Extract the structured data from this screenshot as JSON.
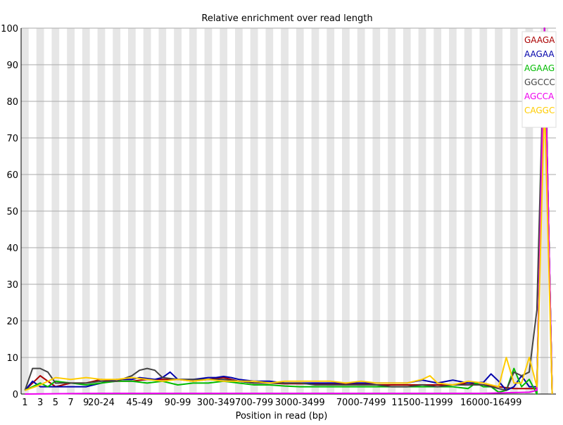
{
  "chart_data": {
    "type": "line",
    "title": "Relative enrichment over read length",
    "xlabel": "Position in read (bp)",
    "ylabel": "",
    "ylim": [
      0,
      100
    ],
    "yticks": [
      0,
      10,
      20,
      30,
      40,
      50,
      60,
      70,
      80,
      90,
      100
    ],
    "grid": "horizontal",
    "legend_position": "top-right",
    "n_positions": 70,
    "x_tick_labels": [
      {
        "i": 0,
        "label": "1"
      },
      {
        "i": 2,
        "label": "3"
      },
      {
        "i": 4,
        "label": "5"
      },
      {
        "i": 6,
        "label": "7"
      },
      {
        "i": 8,
        "label": "9"
      },
      {
        "i": 10,
        "label": "20-24"
      },
      {
        "i": 15,
        "label": "45-49"
      },
      {
        "i": 20,
        "label": "90-99"
      },
      {
        "i": 25,
        "label": "300-349"
      },
      {
        "i": 30,
        "label": "700-799"
      },
      {
        "i": 36,
        "label": "3000-3499"
      },
      {
        "i": 44,
        "label": "7000-7499"
      },
      {
        "i": 52,
        "label": "11500-11999"
      },
      {
        "i": 61,
        "label": "16000-16499"
      }
    ],
    "series": [
      {
        "name": "GAAGA",
        "color": "#aa0000",
        "points": [
          [
            0,
            1
          ],
          [
            2,
            5
          ],
          [
            4,
            2
          ],
          [
            6,
            3
          ],
          [
            8,
            3
          ],
          [
            10,
            4
          ],
          [
            12,
            3.5
          ],
          [
            14,
            3.5
          ],
          [
            16,
            4
          ],
          [
            18,
            4
          ],
          [
            20,
            4
          ],
          [
            22,
            3.5
          ],
          [
            24,
            4
          ],
          [
            26,
            4.5
          ],
          [
            28,
            3.5
          ],
          [
            30,
            3
          ],
          [
            32,
            3
          ],
          [
            34,
            2.8
          ],
          [
            36,
            2.8
          ],
          [
            38,
            2.8
          ],
          [
            40,
            2.8
          ],
          [
            42,
            2.8
          ],
          [
            44,
            2.8
          ],
          [
            46,
            2.5
          ],
          [
            48,
            2.5
          ],
          [
            50,
            2.5
          ],
          [
            52,
            2.5
          ],
          [
            54,
            2.5
          ],
          [
            56,
            2.5
          ],
          [
            58,
            3
          ],
          [
            60,
            2.5
          ],
          [
            62,
            2
          ],
          [
            64,
            1.5
          ],
          [
            66,
            1.5
          ],
          [
            67,
            1.5
          ],
          [
            68,
            100
          ],
          [
            69,
            0
          ]
        ]
      },
      {
        "name": "AAGAA",
        "color": "#0000aa",
        "points": [
          [
            0,
            1
          ],
          [
            1,
            3.5
          ],
          [
            2,
            2
          ],
          [
            4,
            2
          ],
          [
            6,
            2
          ],
          [
            8,
            2
          ],
          [
            10,
            3
          ],
          [
            12,
            4
          ],
          [
            14,
            4
          ],
          [
            15,
            4.5
          ],
          [
            17,
            4
          ],
          [
            18,
            4.5
          ],
          [
            19,
            6
          ],
          [
            20,
            4
          ],
          [
            22,
            4
          ],
          [
            24,
            4.5
          ],
          [
            25,
            4.5
          ],
          [
            26,
            4.8
          ],
          [
            27,
            4.5
          ],
          [
            28,
            4
          ],
          [
            30,
            3.5
          ],
          [
            32,
            3.5
          ],
          [
            34,
            3
          ],
          [
            36,
            3
          ],
          [
            38,
            3
          ],
          [
            40,
            3
          ],
          [
            42,
            3
          ],
          [
            44,
            3
          ],
          [
            46,
            3
          ],
          [
            48,
            3
          ],
          [
            50,
            3
          ],
          [
            52,
            3.8
          ],
          [
            54,
            3
          ],
          [
            56,
            3.8
          ],
          [
            58,
            3
          ],
          [
            60,
            3.2
          ],
          [
            61,
            5.5
          ],
          [
            62,
            3.5
          ],
          [
            63,
            1
          ],
          [
            64,
            2
          ],
          [
            65,
            5
          ],
          [
            66,
            2
          ],
          [
            67,
            2
          ],
          [
            68,
            100
          ],
          [
            69,
            0
          ]
        ]
      },
      {
        "name": "AGAAG",
        "color": "#00bb00",
        "points": [
          [
            0,
            1
          ],
          [
            2,
            3
          ],
          [
            3,
            2
          ],
          [
            4,
            3.5
          ],
          [
            6,
            3
          ],
          [
            8,
            2.5
          ],
          [
            10,
            3
          ],
          [
            12,
            3.5
          ],
          [
            14,
            3.5
          ],
          [
            16,
            3
          ],
          [
            18,
            3.5
          ],
          [
            20,
            2.5
          ],
          [
            22,
            3
          ],
          [
            24,
            3
          ],
          [
            26,
            3.5
          ],
          [
            28,
            3
          ],
          [
            30,
            2.5
          ],
          [
            32,
            2.5
          ],
          [
            34,
            2.2
          ],
          [
            36,
            2
          ],
          [
            38,
            2
          ],
          [
            40,
            2
          ],
          [
            42,
            2
          ],
          [
            44,
            2
          ],
          [
            46,
            2
          ],
          [
            48,
            2
          ],
          [
            50,
            2
          ],
          [
            52,
            2
          ],
          [
            54,
            2
          ],
          [
            56,
            2
          ],
          [
            58,
            1.5
          ],
          [
            59,
            3
          ],
          [
            60,
            2
          ],
          [
            61,
            2
          ],
          [
            62,
            0.5
          ],
          [
            63,
            1
          ],
          [
            64,
            7
          ],
          [
            65,
            2
          ],
          [
            66,
            4
          ],
          [
            67,
            0
          ],
          [
            68,
            100
          ],
          [
            69,
            0
          ]
        ]
      },
      {
        "name": "GGCCC",
        "color": "#444444",
        "points": [
          [
            0,
            1
          ],
          [
            1,
            7
          ],
          [
            2,
            7
          ],
          [
            3,
            6
          ],
          [
            4,
            3
          ],
          [
            6,
            3
          ],
          [
            8,
            3
          ],
          [
            10,
            3.5
          ],
          [
            12,
            3.5
          ],
          [
            14,
            5
          ],
          [
            15,
            6.5
          ],
          [
            16,
            7
          ],
          [
            17,
            6.5
          ],
          [
            18,
            4.5
          ],
          [
            20,
            4
          ],
          [
            22,
            4
          ],
          [
            24,
            4
          ],
          [
            26,
            4
          ],
          [
            28,
            3.5
          ],
          [
            30,
            3
          ],
          [
            32,
            3
          ],
          [
            34,
            3
          ],
          [
            36,
            3
          ],
          [
            38,
            2.5
          ],
          [
            40,
            2.5
          ],
          [
            42,
            2.5
          ],
          [
            44,
            2.5
          ],
          [
            46,
            2.5
          ],
          [
            48,
            2
          ],
          [
            50,
            2
          ],
          [
            52,
            2.5
          ],
          [
            54,
            2
          ],
          [
            56,
            2.5
          ],
          [
            58,
            2.5
          ],
          [
            60,
            2.5
          ],
          [
            62,
            1.5
          ],
          [
            63,
            1
          ],
          [
            64,
            6
          ],
          [
            65,
            5
          ],
          [
            66,
            6
          ],
          [
            67,
            23
          ],
          [
            68,
            100
          ],
          [
            69,
            0
          ]
        ]
      },
      {
        "name": "AGCCA",
        "color": "#ee00ee",
        "points": [
          [
            0,
            0
          ],
          [
            10,
            0.2
          ],
          [
            20,
            0.2
          ],
          [
            30,
            0.2
          ],
          [
            40,
            0.2
          ],
          [
            50,
            0.2
          ],
          [
            60,
            0.2
          ],
          [
            66,
            0.5
          ],
          [
            67,
            1
          ],
          [
            68,
            100
          ],
          [
            69,
            0
          ]
        ]
      },
      {
        "name": "CAGGC",
        "color": "#ffcc00",
        "points": [
          [
            0,
            1
          ],
          [
            2,
            2.5
          ],
          [
            4,
            4.5
          ],
          [
            6,
            4
          ],
          [
            8,
            4.5
          ],
          [
            10,
            4
          ],
          [
            12,
            4
          ],
          [
            14,
            4.5
          ],
          [
            16,
            4
          ],
          [
            18,
            3.5
          ],
          [
            20,
            4
          ],
          [
            22,
            3.5
          ],
          [
            24,
            4
          ],
          [
            26,
            3.5
          ],
          [
            28,
            3.5
          ],
          [
            30,
            3.5
          ],
          [
            32,
            3
          ],
          [
            34,
            3.5
          ],
          [
            36,
            3.5
          ],
          [
            38,
            3.5
          ],
          [
            40,
            3.5
          ],
          [
            42,
            3
          ],
          [
            44,
            3.5
          ],
          [
            46,
            3
          ],
          [
            48,
            3
          ],
          [
            50,
            3
          ],
          [
            52,
            4
          ],
          [
            53,
            5
          ],
          [
            54,
            3
          ],
          [
            56,
            2.5
          ],
          [
            58,
            3.5
          ],
          [
            60,
            3
          ],
          [
            62,
            2
          ],
          [
            63,
            10
          ],
          [
            64,
            3
          ],
          [
            65,
            3
          ],
          [
            66,
            10
          ],
          [
            67,
            2
          ],
          [
            68,
            80
          ],
          [
            69,
            0
          ]
        ]
      }
    ]
  }
}
